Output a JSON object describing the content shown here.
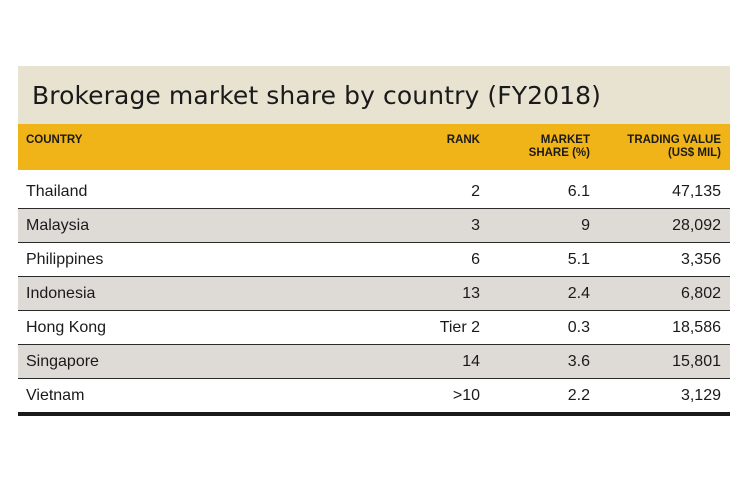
{
  "chart_data": {
    "type": "table",
    "title": "Brokerage market share by country (FY2018)",
    "columns": [
      "COUNTRY",
      "RANK",
      "MARKET SHARE (%)",
      "TRADING VALUE (US$ MIL)"
    ],
    "header": {
      "country": "COUNTRY",
      "rank": "RANK",
      "share_line1": "MARKET",
      "share_line2": "SHARE (%)",
      "value_line1": "TRADING VALUE",
      "value_line2": "(US$ MIL)"
    },
    "rows": [
      {
        "country": "Thailand",
        "rank": "2",
        "share": "6.1",
        "value": "47,135"
      },
      {
        "country": "Malaysia",
        "rank": "3",
        "share": "9",
        "value": "28,092"
      },
      {
        "country": "Philippines",
        "rank": "6",
        "share": "5.1",
        "value": "3,356"
      },
      {
        "country": "Indonesia",
        "rank": "13",
        "share": "2.4",
        "value": "6,802"
      },
      {
        "country": "Hong Kong",
        "rank": "Tier 2",
        "share": "0.3",
        "value": "18,586"
      },
      {
        "country": "Singapore",
        "rank": "14",
        "share": "3.6",
        "value": "15,801"
      },
      {
        "country": "Vietnam",
        "rank": ">10",
        "share": "2.2",
        "value": "3,129"
      }
    ]
  },
  "colors": {
    "title_background": "#e8e3d1",
    "header_background": "#f1b418",
    "alternate_row": "#dedbd6"
  }
}
